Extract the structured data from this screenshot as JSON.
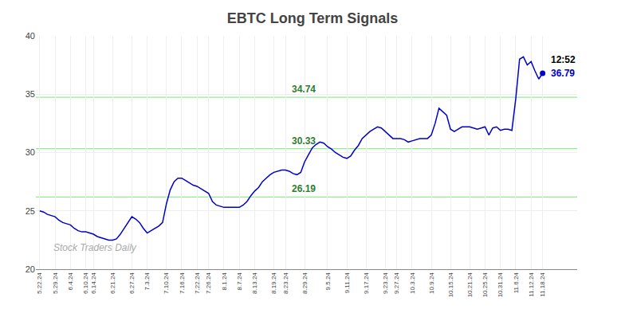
{
  "chart_data": {
    "type": "line",
    "title": "EBTC Long Term Signals",
    "x": [
      0,
      1,
      2,
      3,
      4,
      5,
      6,
      7,
      8,
      9,
      10,
      11,
      12,
      13,
      14,
      15,
      16,
      17,
      18,
      19,
      20,
      21,
      22,
      23,
      24,
      25,
      26,
      27,
      28,
      29,
      30,
      31,
      32,
      33,
      34,
      35,
      36,
      37,
      38,
      39,
      40,
      41,
      42,
      43,
      44,
      45,
      46,
      47,
      48,
      49,
      50,
      51,
      52,
      53,
      54,
      55,
      56,
      57,
      58,
      59,
      60,
      61,
      62,
      63,
      64,
      65,
      66,
      67,
      68,
      69,
      70,
      71,
      72,
      73,
      74,
      75,
      76,
      77,
      78,
      79,
      80,
      81,
      82,
      83,
      84,
      85,
      86,
      87,
      88,
      89,
      90,
      91,
      92,
      93,
      94,
      95,
      96,
      97,
      98,
      99,
      100,
      101,
      102,
      103,
      104,
      105,
      106,
      107,
      108,
      109,
      110,
      111,
      112,
      113,
      114,
      115,
      116,
      117,
      118,
      119,
      120,
      121,
      122,
      123,
      124,
      125,
      126,
      127,
      128,
      129,
      130,
      131
    ],
    "values": [
      25.0,
      24.9,
      24.7,
      24.6,
      24.5,
      24.2,
      24.0,
      23.9,
      23.8,
      23.5,
      23.3,
      23.2,
      23.2,
      23.1,
      23.0,
      22.8,
      22.7,
      22.6,
      22.5,
      22.5,
      22.6,
      23.0,
      23.5,
      24.0,
      24.5,
      24.3,
      24.0,
      23.5,
      23.1,
      23.3,
      23.5,
      23.7,
      24.0,
      25.6,
      26.8,
      27.5,
      27.8,
      27.8,
      27.6,
      27.4,
      27.2,
      27.1,
      26.9,
      26.7,
      26.5,
      25.8,
      25.5,
      25.4,
      25.3,
      25.3,
      25.3,
      25.3,
      25.3,
      25.5,
      25.8,
      26.3,
      26.7,
      27.0,
      27.5,
      27.8,
      28.1,
      28.3,
      28.4,
      28.5,
      28.5,
      28.4,
      28.2,
      28.1,
      28.3,
      29.2,
      29.8,
      30.4,
      30.7,
      30.9,
      30.8,
      30.5,
      30.3,
      30.0,
      29.8,
      29.6,
      29.5,
      29.7,
      30.2,
      30.6,
      31.2,
      31.5,
      31.8,
      32.0,
      32.2,
      32.1,
      31.8,
      31.5,
      31.2,
      31.2,
      31.2,
      31.1,
      30.9,
      31.0,
      31.1,
      31.2,
      31.2,
      31.2,
      31.5,
      32.5,
      33.8,
      33.5,
      33.2,
      32.0,
      31.8,
      32.0,
      32.2,
      32.2,
      32.2,
      32.1,
      32.0,
      32.1,
      32.2,
      31.5,
      32.1,
      32.2,
      31.9,
      32.0,
      32.0,
      31.9,
      34.6,
      38.0,
      38.2,
      37.5,
      37.8,
      37.0,
      36.3,
      36.79
    ],
    "color": "#0000cc",
    "xlim": [
      -1,
      140
    ],
    "xticks": [
      {
        "value": 0,
        "label": "5.22.24"
      },
      {
        "value": 4,
        "label": "5.29.24"
      },
      {
        "value": 8,
        "label": "6.4.24"
      },
      {
        "value": 12,
        "label": "6.10.24"
      },
      {
        "value": 14,
        "label": "6.14.24"
      },
      {
        "value": 19,
        "label": "6.21.24"
      },
      {
        "value": 24,
        "label": "6.27.24"
      },
      {
        "value": 28,
        "label": "7.3.24"
      },
      {
        "value": 33,
        "label": "7.10.24"
      },
      {
        "value": 37,
        "label": "7.16.24"
      },
      {
        "value": 41,
        "label": "7.22.24"
      },
      {
        "value": 44,
        "label": "7.26.24"
      },
      {
        "value": 48,
        "label": "8.1.24"
      },
      {
        "value": 52,
        "label": "8.7.24"
      },
      {
        "value": 56,
        "label": "8.13.24"
      },
      {
        "value": 61,
        "label": "8.19.24"
      },
      {
        "value": 64,
        "label": "8.23.24"
      },
      {
        "value": 69,
        "label": "8.29.24"
      },
      {
        "value": 75,
        "label": "9.5.24"
      },
      {
        "value": 80,
        "label": "9.11.24"
      },
      {
        "value": 85,
        "label": "9.17.24"
      },
      {
        "value": 90,
        "label": "9.23.24"
      },
      {
        "value": 93,
        "label": "9.27.24"
      },
      {
        "value": 97,
        "label": "10.3.24"
      },
      {
        "value": 102,
        "label": "10.9.24"
      },
      {
        "value": 107,
        "label": "10.15.24"
      },
      {
        "value": 112,
        "label": "10.21.24"
      },
      {
        "value": 116,
        "label": "10.25.24"
      },
      {
        "value": 120,
        "label": "10.31.24"
      },
      {
        "value": 124,
        "label": "11.6.24"
      },
      {
        "value": 128,
        "label": "11.12.24"
      },
      {
        "value": 131,
        "label": "11.18.24"
      }
    ],
    "ylim": [
      20,
      40
    ],
    "yticks": [
      20,
      25,
      30,
      35,
      40
    ],
    "grid": true,
    "hlines": [
      {
        "value": 26.19,
        "label": "26.19",
        "color": "#90EE90"
      },
      {
        "value": 30.33,
        "label": "30.33",
        "color": "#90EE90"
      },
      {
        "value": 34.74,
        "label": "34.74",
        "color": "#90EE90"
      }
    ],
    "annotations": [
      {
        "text": "12:52",
        "x": 131,
        "y": 36.79
      },
      {
        "text": "36.79",
        "x": 131,
        "y": 36.79
      },
      {
        "text": "Stock Traders Daily"
      }
    ]
  }
}
